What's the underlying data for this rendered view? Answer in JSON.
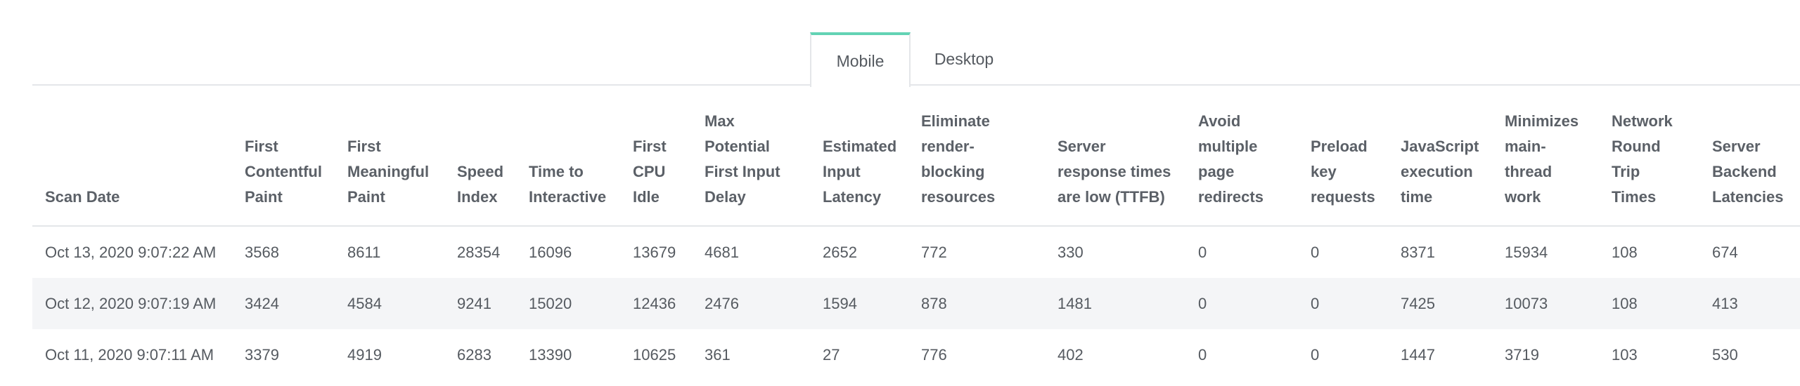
{
  "tabs": [
    {
      "label": "Mobile",
      "active": true
    },
    {
      "label": "Desktop",
      "active": false
    }
  ],
  "table": {
    "headers": [
      [
        "Scan Date"
      ],
      [
        "First",
        "Contentful",
        "Paint"
      ],
      [
        "First",
        "Meaningful",
        "Paint"
      ],
      [
        "Speed",
        "Index"
      ],
      [
        "Time to",
        "Interactive"
      ],
      [
        "First",
        "CPU",
        "Idle"
      ],
      [
        "Max",
        "Potential",
        "First Input",
        "Delay"
      ],
      [
        "Estimated",
        "Input",
        "Latency"
      ],
      [
        "Eliminate",
        "render-",
        "blocking",
        "resources"
      ],
      [
        "Server",
        "response times",
        "are low (TTFB)"
      ],
      [
        "Avoid",
        "multiple",
        "page",
        "redirects"
      ],
      [
        "Preload",
        "key",
        "requests"
      ],
      [
        "JavaScript",
        "execution",
        "time"
      ],
      [
        "Minimizes",
        "main-",
        "thread",
        "work"
      ],
      [
        "Network",
        "Round",
        "Trip",
        "Times"
      ],
      [
        "Server",
        "Backend",
        "Latencies"
      ]
    ],
    "rows": [
      [
        "Oct 13, 2020 9:07:22 AM",
        "3568",
        "8611",
        "28354",
        "16096",
        "13679",
        "4681",
        "2652",
        "772",
        "330",
        "0",
        "0",
        "8371",
        "15934",
        "108",
        "674"
      ],
      [
        "Oct 12, 2020 9:07:19 AM",
        "3424",
        "4584",
        "9241",
        "15020",
        "12436",
        "2476",
        "1594",
        "878",
        "1481",
        "0",
        "0",
        "7425",
        "10073",
        "108",
        "413"
      ],
      [
        "Oct 11, 2020 9:07:11 AM",
        "3379",
        "4919",
        "6283",
        "13390",
        "10625",
        "361",
        "27",
        "776",
        "402",
        "0",
        "0",
        "1447",
        "3719",
        "103",
        "530"
      ]
    ]
  },
  "colors": {
    "active_tab_accent": "#63d3b4",
    "alt_row_background": "#f4f5f7",
    "border": "#e4e6e9"
  }
}
